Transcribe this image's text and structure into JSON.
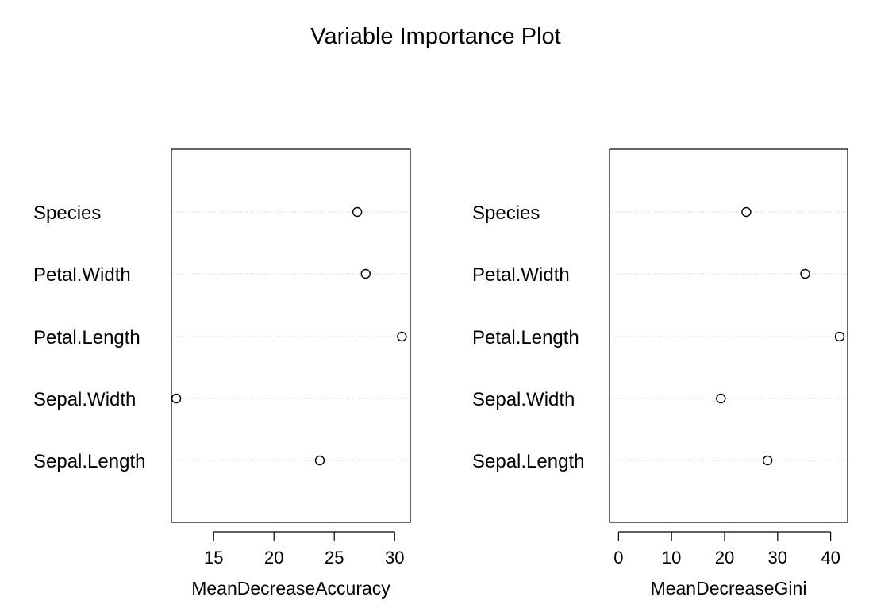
{
  "title": "Variable Importance Plot",
  "chart_data": [
    {
      "type": "scatter",
      "style": "dotchart",
      "xlabel": "MeanDecreaseAccuracy",
      "ylabel": "",
      "xlim": [
        11.5,
        31.3
      ],
      "xticks": [
        15,
        20,
        25,
        30
      ],
      "grid": "horizontal dotted lines",
      "categories": [
        "Species",
        "Petal.Width",
        "Petal.Length",
        "Sepal.Width",
        "Sepal.Length"
      ],
      "values": [
        26.9,
        27.6,
        30.6,
        11.9,
        23.8
      ]
    },
    {
      "type": "scatter",
      "style": "dotchart",
      "xlabel": "MeanDecreaseGini",
      "ylabel": "",
      "xlim": [
        -1.7,
        43.2
      ],
      "xticks": [
        0,
        10,
        20,
        30,
        40
      ],
      "grid": "horizontal dotted lines",
      "categories": [
        "Species",
        "Petal.Width",
        "Petal.Length",
        "Sepal.Width",
        "Sepal.Length"
      ],
      "values": [
        24.1,
        35.2,
        41.7,
        19.3,
        28.1
      ]
    }
  ]
}
